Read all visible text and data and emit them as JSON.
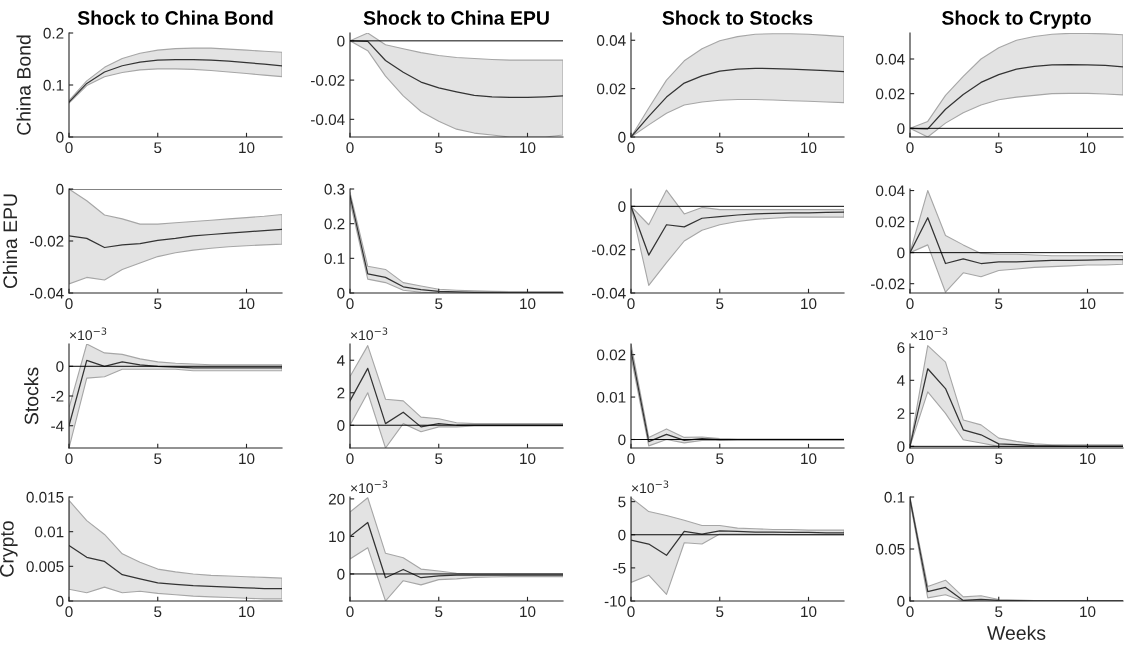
{
  "chart_data": [
    {
      "type": "line",
      "title": "Shock to China Bond",
      "ylabel": "China Bond",
      "x": [
        0,
        1,
        2,
        3,
        4,
        5,
        6,
        7,
        8,
        9,
        10,
        11,
        12
      ],
      "xlim": [
        0,
        12
      ],
      "xticks": [
        0,
        5,
        10
      ],
      "ylim": [
        0,
        0.2
      ],
      "yticks": [
        0,
        0.1,
        0.2
      ],
      "series": [
        {
          "color": "#333333",
          "values": [
            0.067,
            0.103,
            0.125,
            0.137,
            0.144,
            0.148,
            0.149,
            0.149,
            0.148,
            0.146,
            0.143,
            0.14,
            0.137
          ],
          "lower": [
            0.065,
            0.099,
            0.116,
            0.124,
            0.129,
            0.131,
            0.131,
            0.13,
            0.128,
            0.125,
            0.122,
            0.119,
            0.116
          ],
          "upper": [
            0.07,
            0.108,
            0.134,
            0.151,
            0.161,
            0.167,
            0.17,
            0.171,
            0.171,
            0.169,
            0.167,
            0.165,
            0.163
          ]
        }
      ]
    },
    {
      "type": "line",
      "title": "Shock to China EPU",
      "x": [
        0,
        1,
        2,
        3,
        4,
        5,
        6,
        7,
        8,
        9,
        10,
        11,
        12
      ],
      "xlim": [
        0,
        12
      ],
      "xticks": [
        0,
        5,
        10
      ],
      "ylim": [
        -0.049,
        0.004
      ],
      "yticks": [
        -0.04,
        -0.02,
        0
      ],
      "ref_lines": [
        {
          "axis": "y",
          "value": 0
        }
      ],
      "series": [
        {
          "color": "#333333",
          "values": [
            0,
            -0.0003,
            -0.01,
            -0.016,
            -0.021,
            -0.024,
            -0.026,
            -0.0278,
            -0.0285,
            -0.0288,
            -0.0288,
            -0.0285,
            -0.028
          ],
          "lower": [
            0,
            -0.005,
            -0.018,
            -0.028,
            -0.036,
            -0.041,
            -0.045,
            -0.047,
            -0.048,
            -0.049,
            -0.049,
            -0.049,
            -0.048
          ],
          "upper": [
            0,
            0.004,
            -0.002,
            -0.004,
            -0.006,
            -0.0075,
            -0.0085,
            -0.009,
            -0.0095,
            -0.0098,
            -0.0098,
            -0.0098,
            -0.0098
          ]
        }
      ]
    },
    {
      "type": "line",
      "title": "Shock to Stocks",
      "x": [
        0,
        1,
        2,
        3,
        4,
        5,
        6,
        7,
        8,
        9,
        10,
        11,
        12
      ],
      "xlim": [
        0,
        12
      ],
      "xticks": [
        0,
        5,
        10
      ],
      "ylim": [
        0,
        0.043
      ],
      "yticks": [
        0,
        0.02,
        0.04
      ],
      "series": [
        {
          "color": "#333333",
          "values": [
            0,
            0.0085,
            0.0165,
            0.0223,
            0.0253,
            0.0272,
            0.0281,
            0.0284,
            0.0283,
            0.0281,
            0.0278,
            0.0274,
            0.027
          ],
          "lower": [
            0,
            0.005,
            0.0098,
            0.0132,
            0.0145,
            0.0152,
            0.0155,
            0.0155,
            0.0153,
            0.015,
            0.0148,
            0.0145,
            0.0142
          ],
          "upper": [
            0,
            0.012,
            0.0235,
            0.0315,
            0.0365,
            0.0398,
            0.0415,
            0.0425,
            0.0427,
            0.0427,
            0.0425,
            0.042,
            0.0415
          ]
        }
      ]
    },
    {
      "type": "line",
      "title": "Shock to Crypto",
      "x": [
        0,
        1,
        2,
        3,
        4,
        5,
        6,
        7,
        8,
        9,
        10,
        11,
        12
      ],
      "xlim": [
        0,
        12
      ],
      "xticks": [
        0,
        5,
        10
      ],
      "ylim": [
        -0.005,
        0.055
      ],
      "yticks": [
        0,
        0.02,
        0.04
      ],
      "ref_lines": [
        {
          "axis": "y",
          "value": 0
        }
      ],
      "series": [
        {
          "color": "#333333",
          "values": [
            0,
            -0.0003,
            0.011,
            0.0195,
            0.0265,
            0.031,
            0.0342,
            0.0358,
            0.0366,
            0.0368,
            0.0366,
            0.0363,
            0.0355
          ],
          "lower": [
            0,
            -0.005,
            0.003,
            0.009,
            0.0135,
            0.0165,
            0.018,
            0.019,
            0.02,
            0.0202,
            0.0202,
            0.0198,
            0.0193
          ],
          "upper": [
            0,
            0.004,
            0.019,
            0.03,
            0.04,
            0.0465,
            0.0508,
            0.053,
            0.0543,
            0.0548,
            0.0548,
            0.0545,
            0.054
          ]
        }
      ]
    },
    {
      "type": "line",
      "ylabel": "China EPU",
      "x": [
        0,
        1,
        2,
        3,
        4,
        5,
        6,
        7,
        8,
        9,
        10,
        11,
        12
      ],
      "xlim": [
        0,
        12
      ],
      "xticks": [
        0,
        5,
        10
      ],
      "ylim": [
        -0.04,
        0
      ],
      "yticks": [
        -0.04,
        -0.02,
        0
      ],
      "ref_lines": [
        {
          "axis": "y",
          "value": 0
        }
      ],
      "series": [
        {
          "color": "#333333",
          "values": [
            -0.018,
            -0.019,
            -0.0225,
            -0.0215,
            -0.021,
            -0.0198,
            -0.019,
            -0.018,
            -0.0175,
            -0.017,
            -0.0165,
            -0.016,
            -0.0155
          ],
          "lower": [
            -0.0365,
            -0.034,
            -0.035,
            -0.031,
            -0.0285,
            -0.026,
            -0.0245,
            -0.0235,
            -0.0228,
            -0.0222,
            -0.0218,
            -0.0215,
            -0.0212
          ],
          "upper": [
            0,
            -0.0045,
            -0.01,
            -0.0115,
            -0.0135,
            -0.0135,
            -0.013,
            -0.0125,
            -0.012,
            -0.0115,
            -0.011,
            -0.0105,
            -0.0098
          ]
        }
      ]
    },
    {
      "type": "line",
      "x": [
        0,
        1,
        2,
        3,
        4,
        5,
        6,
        7,
        8,
        9,
        10,
        11,
        12
      ],
      "xlim": [
        0,
        12
      ],
      "xticks": [
        0,
        5,
        10
      ],
      "ylim": [
        0,
        0.3
      ],
      "yticks": [
        0,
        0.1,
        0.2,
        0.3
      ],
      "series": [
        {
          "color": "#333333",
          "values": [
            0.28,
            0.055,
            0.045,
            0.018,
            0.01,
            0.005,
            0.003,
            0.002,
            0.0015,
            0.001,
            0.001,
            0.001,
            0.001
          ],
          "lower": [
            0.265,
            0.04,
            0.03,
            0.008,
            0.002,
            0.0005,
            0,
            0,
            0,
            0,
            0,
            0,
            0
          ],
          "upper": [
            0.29,
            0.077,
            0.068,
            0.03,
            0.02,
            0.011,
            0.008,
            0.006,
            0.005,
            0.004,
            0.004,
            0.004,
            0.004
          ]
        }
      ]
    },
    {
      "type": "line",
      "x": [
        0,
        1,
        2,
        3,
        4,
        5,
        6,
        7,
        8,
        9,
        10,
        11,
        12
      ],
      "xlim": [
        0,
        12
      ],
      "xticks": [
        0,
        5,
        10
      ],
      "ylim": [
        -0.04,
        0.008
      ],
      "yticks": [
        -0.04,
        -0.02,
        0
      ],
      "ref_lines": [
        {
          "axis": "y",
          "value": 0
        }
      ],
      "series": [
        {
          "color": "#333333",
          "values": [
            0,
            -0.0225,
            -0.0085,
            -0.0095,
            -0.0055,
            -0.0048,
            -0.004,
            -0.0035,
            -0.0032,
            -0.003,
            -0.003,
            -0.0028,
            -0.0027
          ],
          "lower": [
            0,
            -0.0365,
            -0.026,
            -0.016,
            -0.011,
            -0.0085,
            -0.007,
            -0.006,
            -0.0055,
            -0.005,
            -0.005,
            -0.005,
            -0.005
          ],
          "upper": [
            0,
            -0.0085,
            0.0075,
            -0.0035,
            -0.0005,
            -0.0015,
            -0.0015,
            -0.0015,
            -0.0015,
            -0.0015,
            -0.0015,
            -0.0015,
            -0.0015
          ]
        }
      ]
    },
    {
      "type": "line",
      "x": [
        0,
        1,
        2,
        3,
        4,
        5,
        6,
        7,
        8,
        9,
        10,
        11,
        12
      ],
      "xlim": [
        0,
        12
      ],
      "xticks": [
        0,
        5,
        10
      ],
      "ylim": [
        -0.026,
        0.041
      ],
      "yticks": [
        -0.02,
        0,
        0.02,
        0.04
      ],
      "ref_lines": [
        {
          "axis": "y",
          "value": 0
        }
      ],
      "series": [
        {
          "color": "#333333",
          "values": [
            0,
            0.0225,
            -0.007,
            -0.004,
            -0.007,
            -0.006,
            -0.006,
            -0.0055,
            -0.005,
            -0.005,
            -0.0048,
            -0.0045,
            -0.0045
          ],
          "lower": [
            0,
            0.005,
            -0.0255,
            -0.013,
            -0.0155,
            -0.0115,
            -0.0105,
            -0.0095,
            -0.009,
            -0.0085,
            -0.008,
            -0.008,
            -0.0075
          ],
          "upper": [
            0,
            0.04,
            0.011,
            0.005,
            -0.0005,
            -0.001,
            -0.001,
            -0.0015,
            -0.002,
            -0.002,
            -0.002,
            -0.002,
            -0.002
          ]
        }
      ]
    },
    {
      "type": "line",
      "ylabel": "Stocks",
      "annotations": [
        "×10$^{−3}$"
      ],
      "x": [
        0,
        1,
        2,
        3,
        4,
        5,
        6,
        7,
        8,
        9,
        10,
        11,
        12
      ],
      "xlim": [
        0,
        12
      ],
      "xticks": [
        0,
        5,
        10
      ],
      "ylim": [
        -5.5,
        1.5
      ],
      "yticks": [
        -4,
        -2,
        0
      ],
      "ref_lines": [
        {
          "axis": "y",
          "value": 0
        }
      ],
      "series": [
        {
          "color": "#333333",
          "values": [
            -4.0,
            0.4,
            0.0,
            0.3,
            0.1,
            0.0,
            -0.05,
            -0.1,
            -0.1,
            -0.1,
            -0.1,
            -0.1,
            -0.1
          ],
          "lower": [
            -5.5,
            -0.8,
            -0.7,
            -0.2,
            -0.2,
            -0.2,
            -0.2,
            -0.3,
            -0.3,
            -0.3,
            -0.3,
            -0.3,
            -0.3
          ],
          "upper": [
            -2.8,
            1.5,
            0.9,
            0.8,
            0.5,
            0.3,
            0.2,
            0.15,
            0.1,
            0.1,
            0.1,
            0.1,
            0.1
          ]
        }
      ]
    },
    {
      "type": "line",
      "annotations": [
        "×10$^{−3}$"
      ],
      "x": [
        0,
        1,
        2,
        3,
        4,
        5,
        6,
        7,
        8,
        9,
        10,
        11,
        12
      ],
      "xlim": [
        0,
        12
      ],
      "xticks": [
        0,
        5,
        10
      ],
      "ylim": [
        -1.4,
        5
      ],
      "yticks": [
        0,
        2,
        4
      ],
      "ref_lines": [
        {
          "axis": "y",
          "value": 0
        }
      ],
      "series": [
        {
          "color": "#333333",
          "values": [
            1.5,
            3.5,
            0.1,
            0.8,
            -0.1,
            0.1,
            0.0,
            0.0,
            0.0,
            0.0,
            0.0,
            0.0,
            0.0
          ],
          "lower": [
            0.0,
            2.0,
            -1.4,
            0.1,
            -0.4,
            -0.1,
            -0.1,
            -0.05,
            -0.05,
            -0.05,
            -0.05,
            -0.05,
            -0.05
          ],
          "upper": [
            3.0,
            4.9,
            1.6,
            1.5,
            0.5,
            0.4,
            0.15,
            0.1,
            0.1,
            0.1,
            0.1,
            0.1,
            0.1
          ]
        }
      ]
    },
    {
      "type": "line",
      "x": [
        0,
        1,
        2,
        3,
        4,
        5,
        6,
        7,
        8,
        9,
        10,
        11,
        12
      ],
      "xlim": [
        0,
        12
      ],
      "xticks": [
        0,
        5,
        10
      ],
      "ylim": [
        -0.002,
        0.0225
      ],
      "yticks": [
        0,
        0.01,
        0.02
      ],
      "ref_lines": [
        {
          "axis": "y",
          "value": 0
        }
      ],
      "series": [
        {
          "color": "#333333",
          "values": [
            0.021,
            -0.0005,
            0.0012,
            -0.0002,
            0.0002,
            0,
            0,
            0,
            0,
            0,
            0,
            0,
            0
          ],
          "lower": [
            0.0195,
            -0.0015,
            0.0,
            -0.0008,
            -0.0002,
            -0.0002,
            -0.0001,
            -0.0001,
            -0.0001,
            -0.0001,
            -0.0001,
            -0.0001,
            -0.0001
          ],
          "upper": [
            0.0225,
            0.0005,
            0.0025,
            0.0005,
            0.0006,
            0.0002,
            0.0001,
            0.0001,
            0.0001,
            0.0001,
            0.0001,
            0.0001,
            0.0001
          ]
        }
      ]
    },
    {
      "type": "line",
      "annotations": [
        "×10$^{−3}$"
      ],
      "x": [
        0,
        1,
        2,
        3,
        4,
        5,
        6,
        7,
        8,
        9,
        10,
        11,
        12
      ],
      "xlim": [
        0,
        12
      ],
      "xticks": [
        0,
        5,
        10
      ],
      "ylim": [
        -0.1,
        6.2
      ],
      "yticks": [
        0,
        2,
        4,
        6
      ],
      "ref_lines": [
        {
          "axis": "y",
          "value": 0
        }
      ],
      "series": [
        {
          "color": "#333333",
          "values": [
            0,
            4.7,
            3.5,
            1.0,
            0.7,
            0.15,
            0.1,
            0.05,
            0.03,
            0.02,
            0.02,
            0.02,
            0.02
          ],
          "lower": [
            0,
            3.3,
            2.0,
            0.4,
            0.2,
            0.0,
            0,
            0,
            0,
            0,
            0,
            0,
            0
          ],
          "upper": [
            0,
            6.1,
            5.1,
            1.6,
            1.3,
            0.5,
            0.3,
            0.15,
            0.1,
            0.1,
            0.1,
            0.1,
            0.1
          ]
        }
      ]
    },
    {
      "type": "line",
      "ylabel": "Crypto",
      "x": [
        0,
        1,
        2,
        3,
        4,
        5,
        6,
        7,
        8,
        9,
        10,
        11,
        12
      ],
      "xlim": [
        0,
        12
      ],
      "xticks": [
        0,
        5,
        10
      ],
      "ylim": [
        0,
        0.015
      ],
      "yticks": [
        0,
        0.005,
        0.01,
        0.015
      ],
      "series": [
        {
          "color": "#333333",
          "values": [
            0.008,
            0.0063,
            0.0057,
            0.0038,
            0.0032,
            0.0026,
            0.0024,
            0.0022,
            0.0021,
            0.002,
            0.0019,
            0.0018,
            0.0018
          ],
          "lower": [
            0.0017,
            0.0012,
            0.002,
            0.0012,
            0.0014,
            0.0011,
            0.0009,
            0.0007,
            0.0006,
            0.0005,
            0.0004,
            0.0003,
            0.0003
          ],
          "upper": [
            0.0145,
            0.0116,
            0.0096,
            0.0068,
            0.0056,
            0.0046,
            0.0042,
            0.0039,
            0.0037,
            0.0036,
            0.0035,
            0.0034,
            0.0033
          ]
        }
      ]
    },
    {
      "type": "line",
      "annotations": [
        "×10$^{−3}$"
      ],
      "x": [
        0,
        1,
        2,
        3,
        4,
        5,
        6,
        7,
        8,
        9,
        10,
        11,
        12
      ],
      "xlim": [
        0,
        12
      ],
      "xticks": [
        0,
        5,
        10
      ],
      "ylim": [
        -7.2,
        20.5
      ],
      "yticks": [
        0,
        10,
        20
      ],
      "ref_lines": [
        {
          "axis": "y",
          "value": 0
        }
      ],
      "series": [
        {
          "color": "#333333",
          "values": [
            10,
            13.7,
            -1,
            1.2,
            -1,
            -0.5,
            -0.3,
            -0.3,
            -0.3,
            -0.3,
            -0.3,
            -0.3,
            -0.3
          ],
          "lower": [
            4,
            7,
            -7.2,
            -1.8,
            -2.9,
            -1.5,
            -1.3,
            -0.9,
            -0.8,
            -0.7,
            -0.7,
            -0.7,
            -0.7
          ],
          "upper": [
            16.5,
            20.3,
            5.5,
            4.3,
            1.3,
            0.8,
            0.2,
            0,
            0,
            0,
            0,
            0,
            0
          ]
        }
      ]
    },
    {
      "type": "line",
      "annotations": [
        "×10$^{−3}$"
      ],
      "x": [
        0,
        1,
        2,
        3,
        4,
        5,
        6,
        7,
        8,
        9,
        10,
        11,
        12
      ],
      "xlim": [
        0,
        12
      ],
      "xticks": [
        0,
        5,
        10
      ],
      "ylim": [
        -10,
        5.7
      ],
      "yticks": [
        -10,
        -5,
        0,
        5
      ],
      "ref_lines": [
        {
          "axis": "y",
          "value": 0
        }
      ],
      "series": [
        {
          "color": "#333333",
          "values": [
            -0.8,
            -1.4,
            -3.1,
            0.5,
            0.1,
            0.6,
            0.5,
            0.4,
            0.4,
            0.35,
            0.35,
            0.3,
            0.3
          ],
          "lower": [
            -7.2,
            -6.1,
            -9,
            -1.2,
            -1.4,
            0.1,
            0.1,
            0.05,
            0.05,
            0.0,
            0.0,
            0.0,
            0.0
          ],
          "upper": [
            5.6,
            3.5,
            2.9,
            2.2,
            1.4,
            1.4,
            1.0,
            0.9,
            0.8,
            0.8,
            0.7,
            0.7,
            0.7
          ]
        }
      ]
    },
    {
      "type": "line",
      "xlabel": "Weeks",
      "x": [
        0,
        1,
        2,
        3,
        4,
        5,
        6,
        7,
        8,
        9,
        10,
        11,
        12
      ],
      "xlim": [
        0,
        12
      ],
      "xticks": [
        0,
        5,
        10
      ],
      "ylim": [
        0,
        0.1
      ],
      "yticks": [
        0,
        0.05,
        0.1
      ],
      "series": [
        {
          "color": "#333333",
          "values": [
            0.098,
            0.009,
            0.013,
            0.0005,
            0.0015,
            0.0005,
            0.0003,
            0.0002,
            0.0001,
            0.0001,
            0.0001,
            0.0001,
            0.0001
          ],
          "lower": [
            0.096,
            0.003,
            0.006,
            0,
            0,
            0,
            0,
            0,
            0,
            0,
            0,
            0,
            0
          ],
          "upper": [
            0.1,
            0.014,
            0.02,
            0.004,
            0.005,
            0.0015,
            0.001,
            0.0005,
            0.0003,
            0.0003,
            0.0003,
            0.0003,
            0.0003
          ]
        }
      ]
    }
  ]
}
